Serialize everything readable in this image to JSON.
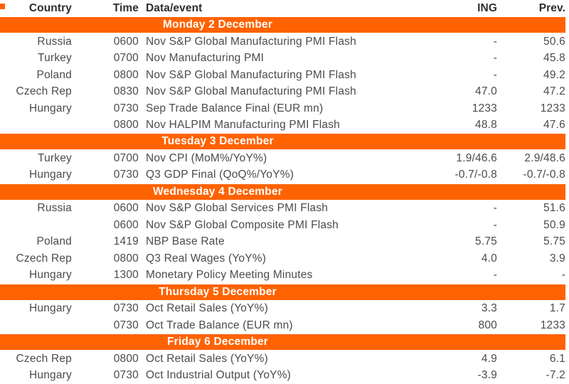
{
  "colors": {
    "accent": "#FF6200",
    "body_text": "#4B4B4B",
    "header_text": "#2E2E2E",
    "banner_text": "#FFFFFF"
  },
  "table": {
    "headers": {
      "country": "Country",
      "time": "Time",
      "event": "Data/event",
      "ing": "ING",
      "prev": "Prev."
    },
    "sections": [
      {
        "title": "Monday 2 December",
        "rows": [
          {
            "country": "Russia",
            "time": "0600",
            "event": "Nov S&P Global Manufacturing PMI Flash",
            "ing": "-",
            "prev": "50.6"
          },
          {
            "country": "Turkey",
            "time": "0700",
            "event": "Nov Manufacturing PMI",
            "ing": "-",
            "prev": "45.8"
          },
          {
            "country": "Poland",
            "time": "0800",
            "event": "Nov S&P Global Manufacturing PMI Flash",
            "ing": "-",
            "prev": "49.2"
          },
          {
            "country": "Czech Rep",
            "time": "0830",
            "event": "Nov S&P Global Manufacturing PMI Flash",
            "ing": "47.0",
            "prev": "47.2"
          },
          {
            "country": "Hungary",
            "time": "0730",
            "event": "Sep Trade Balance Final (EUR mn)",
            "ing": "1233",
            "prev": "1233"
          },
          {
            "country": "",
            "time": "0800",
            "event": "Nov HALPIM Manufacturing PMI Flash",
            "ing": "48.8",
            "prev": "47.6"
          }
        ]
      },
      {
        "title": "Tuesday 3 December",
        "rows": [
          {
            "country": "Turkey",
            "time": "0700",
            "event": "Nov CPI (MoM%/YoY%)",
            "ing": "1.9/46.6",
            "prev": "2.9/48.6"
          },
          {
            "country": "Hungary",
            "time": "0730",
            "event": "Q3 GDP Final (QoQ%/YoY%)",
            "ing": "-0.7/-0.8",
            "prev": "-0.7/-0.8"
          }
        ]
      },
      {
        "title": "Wednesday 4 December",
        "rows": [
          {
            "country": "Russia",
            "time": "0600",
            "event": "Nov S&P Global Services PMI Flash",
            "ing": "-",
            "prev": "51.6"
          },
          {
            "country": "",
            "time": "0600",
            "event": "Nov S&P Global Composite PMI Flash",
            "ing": "-",
            "prev": "50.9"
          },
          {
            "country": "Poland",
            "time": "1419",
            "event": "NBP Base Rate",
            "ing": "5.75",
            "prev": "5.75"
          },
          {
            "country": "Czech Rep",
            "time": "0800",
            "event": "Q3 Real Wages (YoY%)",
            "ing": "4.0",
            "prev": "3.9"
          },
          {
            "country": "Hungary",
            "time": "1300",
            "event": "Monetary Policy Meeting Minutes",
            "ing": "-",
            "prev": "-"
          }
        ]
      },
      {
        "title": "Thursday 5 December",
        "rows": [
          {
            "country": "Hungary",
            "time": "0730",
            "event": "Oct Retail Sales (YoY%)",
            "ing": "3.3",
            "prev": "1.7"
          },
          {
            "country": "",
            "time": "0730",
            "event": "Oct Trade Balance (EUR mn)",
            "ing": "800",
            "prev": "1233"
          }
        ]
      },
      {
        "title": "Friday 6 December",
        "rows": [
          {
            "country": "Czech Rep",
            "time": "0800",
            "event": "Oct Retail Sales (YoY%)",
            "ing": "4.9",
            "prev": "6.1"
          },
          {
            "country": "Hungary",
            "time": "0730",
            "event": "Oct Industrial Output (YoY%)",
            "ing": "-3.9",
            "prev": "-7.2"
          }
        ]
      }
    ]
  }
}
